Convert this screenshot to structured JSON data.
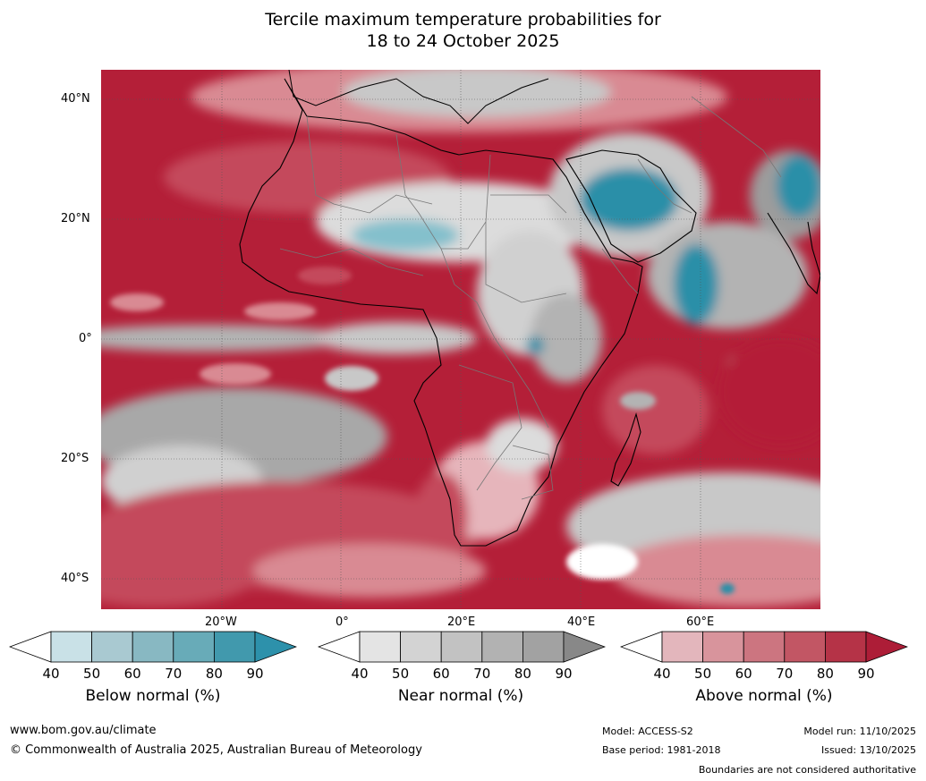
{
  "title": {
    "line1": "Tercile maximum temperature probabilities for",
    "line2": "18 to 24 October 2025"
  },
  "map": {
    "lat_labels": [
      "40°N",
      "20°N",
      "0°",
      "20°S",
      "40°S"
    ],
    "lon_labels": [
      "20°W",
      "0°",
      "20°E",
      "40°E",
      "60°E"
    ],
    "colors": {
      "ocean_red": "#b41f38",
      "mid_red": "#c44a5c",
      "light_red": "#d98a93",
      "pale_red": "#e6b5bb",
      "light_grey": "#dcdcdc",
      "mid_grey": "#b3b3b3",
      "dark_grey": "#9c9c9c",
      "teal": "#2b8fa8",
      "light_teal": "#84c0cc"
    }
  },
  "colorbars": [
    {
      "title": "Below normal (%)",
      "ticks": [
        "40",
        "50",
        "60",
        "70",
        "80",
        "90"
      ],
      "colors": [
        "#ffffff",
        "#c9e1e7",
        "#a9c9d1",
        "#88b8c2",
        "#68abb8",
        "#4199ad",
        "#2d91ab"
      ]
    },
    {
      "title": "Near normal (%)",
      "ticks": [
        "40",
        "50",
        "60",
        "70",
        "80",
        "90"
      ],
      "colors": [
        "#ffffff",
        "#e4e4e4",
        "#d3d3d3",
        "#c2c2c2",
        "#b2b2b2",
        "#a2a2a2",
        "#888888"
      ]
    },
    {
      "title": "Above normal (%)",
      "ticks": [
        "40",
        "50",
        "60",
        "70",
        "80",
        "90"
      ],
      "colors": [
        "#ffffff",
        "#e3b6bc",
        "#d8949c",
        "#cc7580",
        "#c25664",
        "#b53347",
        "#ad1d37"
      ]
    }
  ],
  "footer": {
    "website": "www.bom.gov.au/climate",
    "copyright": "© Commonwealth of Australia 2025, Australian Bureau of Meteorology",
    "model": "Model: ACCESS-S2",
    "base_period": "Base period: 1981-2018",
    "model_run": "Model run: 11/10/2025",
    "issued": "Issued: 13/10/2025",
    "disclaimer": "Boundaries are not considered authoritative"
  }
}
